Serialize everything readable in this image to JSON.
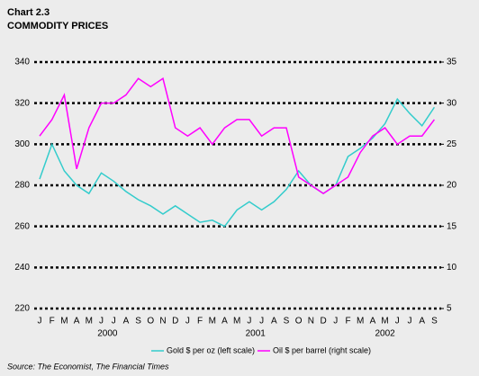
{
  "chart_data": {
    "type": "line",
    "title": "Chart 2.3",
    "subtitle": "COMMODITY PRICES",
    "categories": [
      "J",
      "F",
      "M",
      "A",
      "M",
      "J",
      "J",
      "A",
      "S",
      "O",
      "N",
      "D",
      "J",
      "F",
      "M",
      "A",
      "M",
      "J",
      "J",
      "A",
      "S",
      "O",
      "N",
      "D",
      "J",
      "F",
      "M",
      "A",
      "M",
      "J",
      "J",
      "A",
      "S"
    ],
    "year_labels": [
      "2000",
      "2001",
      "2002"
    ],
    "series": [
      {
        "name": "Gold $ per oz (left scale)",
        "color": "#33cccc",
        "axis": "y",
        "values": [
          283,
          300,
          287,
          280,
          276,
          286,
          282,
          277,
          273,
          270,
          266,
          270,
          266,
          262,
          263,
          260,
          268,
          272,
          268,
          272,
          278,
          287,
          280,
          276,
          280,
          294,
          298,
          303,
          310,
          322,
          315,
          309,
          318
        ]
      },
      {
        "name": "Oil $ per barrel (right scale)",
        "color": "#ff00ff",
        "axis": "y2",
        "values": [
          26,
          28,
          31,
          22,
          27,
          30,
          30,
          31,
          33,
          32,
          33,
          27,
          26,
          27,
          25,
          27,
          28,
          28,
          26,
          27,
          27,
          21,
          20,
          19,
          20,
          21,
          24,
          26,
          27,
          25,
          26,
          26,
          28
        ]
      }
    ],
    "ylim": [
      220,
      340
    ],
    "yticks": [
      220,
      240,
      260,
      280,
      300,
      320,
      340
    ],
    "y2lim": [
      5,
      35
    ],
    "y2ticks": [
      5,
      10,
      15,
      20,
      25,
      30,
      35
    ],
    "grid": true,
    "source": "Source:  The Economist, The Financial Times"
  }
}
